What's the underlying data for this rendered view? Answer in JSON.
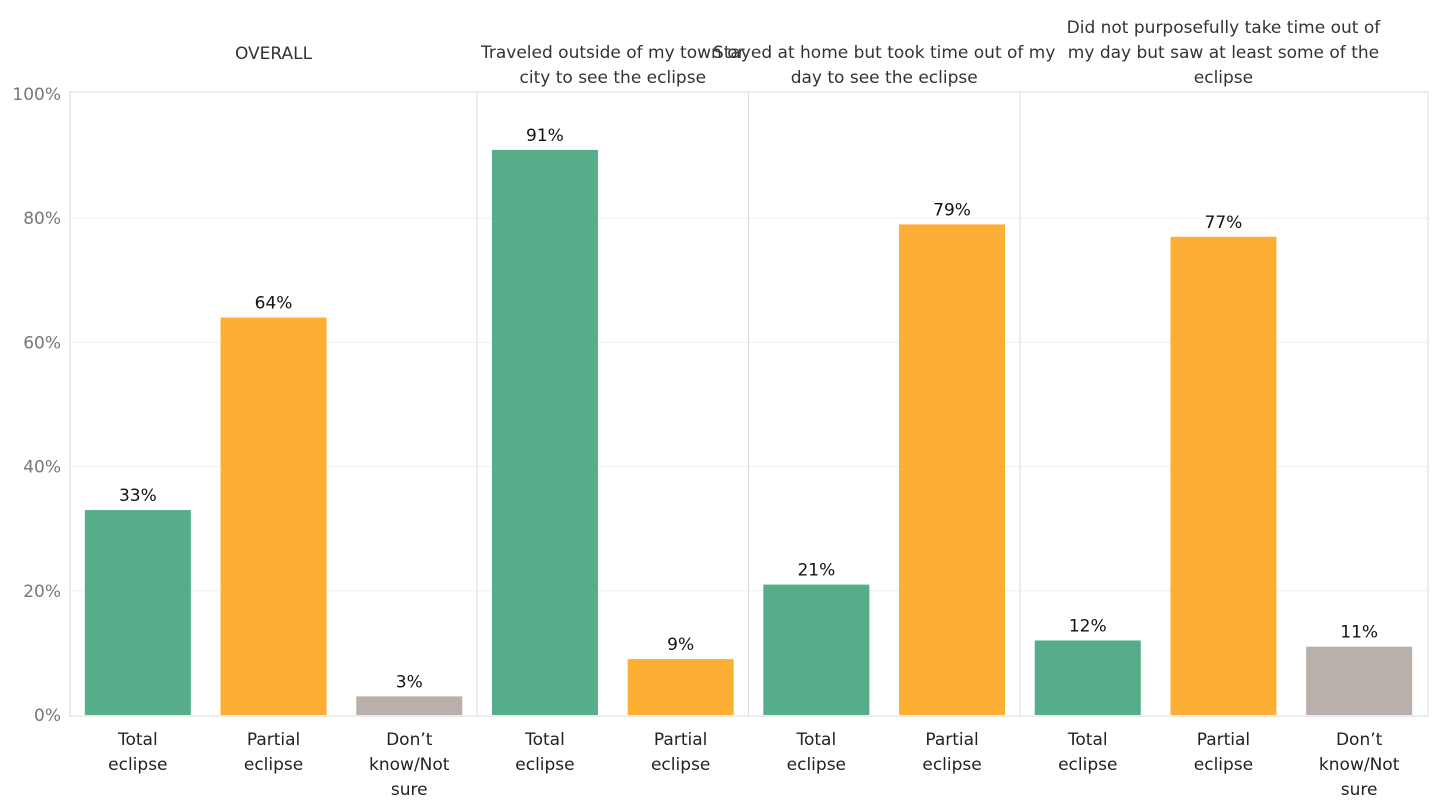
{
  "chart_data": {
    "type": "bar",
    "title": "",
    "xlabel": "",
    "ylabel": "",
    "ylim": [
      0,
      100
    ],
    "yticks": [
      0,
      20,
      40,
      60,
      80,
      100
    ],
    "ytick_labels": [
      "0%",
      "20%",
      "40%",
      "60%",
      "80%",
      "100%"
    ],
    "grid": true,
    "colors": {
      "Total eclipse": "#55ad89",
      "Partial eclipse": "#fdae34",
      "Don’t know/Not sure": "#bab0ab"
    },
    "panels": [
      {
        "title": "OVERALL",
        "categories": [
          "Total eclipse",
          "Partial eclipse",
          "Don’t know/Not sure"
        ],
        "values": [
          33,
          64,
          3
        ],
        "value_labels": [
          "33%",
          "64%",
          "3%"
        ]
      },
      {
        "title": "Traveled outside of my town or city to see the eclipse",
        "categories": [
          "Total eclipse",
          "Partial eclipse"
        ],
        "values": [
          91,
          9
        ],
        "value_labels": [
          "91%",
          "9%"
        ]
      },
      {
        "title": "Stayed at home but took time out of my day to see the eclipse",
        "categories": [
          "Total eclipse",
          "Partial eclipse"
        ],
        "values": [
          21,
          79
        ],
        "value_labels": [
          "21%",
          "79%"
        ]
      },
      {
        "title": "Did not purposefully take time out of my day but saw at least some of the eclipse",
        "categories": [
          "Total eclipse",
          "Partial eclipse",
          "Don’t know/Not sure"
        ],
        "values": [
          12,
          77,
          11
        ],
        "value_labels": [
          "12%",
          "77%",
          "11%"
        ]
      }
    ]
  }
}
